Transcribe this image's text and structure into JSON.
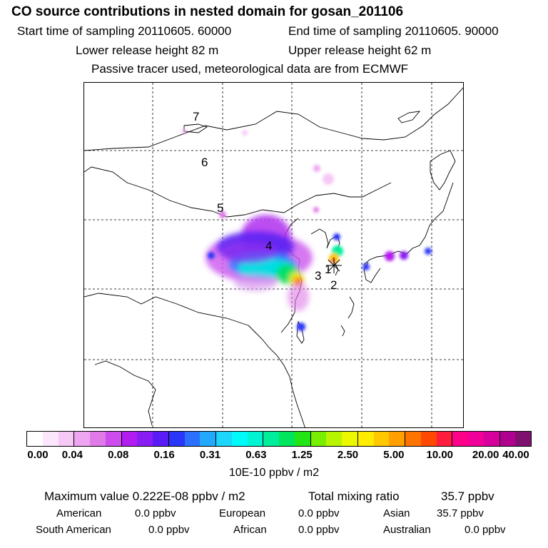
{
  "header": {
    "title": "CO  source contributions in nested domain for gosan_201106",
    "start_time": "Start time of sampling 20110605. 60000",
    "end_time": "End time of sampling 20110605. 90000",
    "lower_release": "Lower release height   82 m",
    "upper_release": "Upper release height   62 m",
    "tracer_note": "Passive tracer used, meteorological data are from ECMWF"
  },
  "map": {
    "trajectory_labels": [
      "1",
      "2",
      "3",
      "4",
      "5",
      "6",
      "7"
    ],
    "receptor_marker": "star-marker"
  },
  "colorbar": {
    "ticks": [
      "0.00",
      "0.04",
      "0.08",
      "0.16",
      "0.31",
      "0.63",
      "1.25",
      "2.50",
      "5.00",
      "10.00",
      "20.00",
      "40.00"
    ],
    "unit": "10E-10 ppbv / m2",
    "colors": [
      "#ffffff",
      "#fce6fc",
      "#f6c8f6",
      "#eea6f2",
      "#e07ae8",
      "#cc4cee",
      "#b21cf0",
      "#8a1cf4",
      "#5a1cf6",
      "#2a36f8",
      "#2a70fc",
      "#22a8fc",
      "#1cd6fc",
      "#00fafa",
      "#00f4d2",
      "#00ee9c",
      "#00e65c",
      "#22e614",
      "#78ee00",
      "#b8f400",
      "#ecf800",
      "#ffec00",
      "#ffc800",
      "#ffa000",
      "#ff7400",
      "#ff4800",
      "#ff1c3c",
      "#ff0088",
      "#f00098",
      "#d8009c",
      "#b00090",
      "#801070"
    ]
  },
  "summary": {
    "max_label": "Maximum value  0.222E-08 ppbv / m2",
    "total_label": "Total mixing ratio",
    "total_value": "35.7 ppbv",
    "regions": [
      {
        "name": "American",
        "value": "0.0 ppbv"
      },
      {
        "name": "European",
        "value": "0.0 ppbv"
      },
      {
        "name": "Asian",
        "value": "35.7 ppbv"
      },
      {
        "name": "South American",
        "value": "0.0 ppbv"
      },
      {
        "name": "African",
        "value": "0.0 ppbv"
      },
      {
        "name": "Australian",
        "value": "0.0 ppbv"
      }
    ]
  }
}
